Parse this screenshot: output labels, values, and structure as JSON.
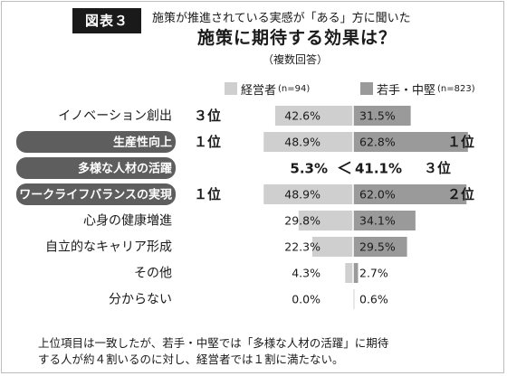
{
  "header": {
    "figure_label": "図表３",
    "subtitle": "施策が推進されている実感が「ある」方に聞いた",
    "title": "施策に期待する効果は？",
    "note": "（複数回答）"
  },
  "colors": {
    "executives": "#cfcfcf",
    "young_mid": "#9a9a9a",
    "highlight_pill": "#5e5e5e",
    "accent_line": "#1a1a1a"
  },
  "chart_data": {
    "type": "bar",
    "orientation": "horizontal-diverging",
    "xlim": [
      0,
      70
    ],
    "categories": [
      "イノベーション創出",
      "生産性向上",
      "多様な人材の活躍",
      "ワークライフバランスの実現",
      "心身の健康増進",
      "自立的なキャリア形成",
      "その他",
      "分からない"
    ],
    "highlighted": [
      false,
      true,
      true,
      true,
      false,
      false,
      false,
      false
    ],
    "series": [
      {
        "name": "経営者",
        "n_label": "(n=94)",
        "side": "left",
        "values": [
          42.6,
          48.9,
          5.3,
          48.9,
          29.8,
          22.3,
          4.3,
          0.0
        ],
        "value_labels": [
          "42.6%",
          "48.9%",
          "5.3%",
          "48.9%",
          "29.8%",
          "22.3%",
          "4.3%",
          "0.0%"
        ],
        "rank_labels": [
          "３位",
          "１位",
          "",
          "１位",
          "",
          "",
          "",
          ""
        ]
      },
      {
        "name": "若手・中堅",
        "n_label": "(n=823)",
        "side": "right",
        "values": [
          31.5,
          62.8,
          41.1,
          62.0,
          34.1,
          29.5,
          2.7,
          0.6
        ],
        "value_labels": [
          "31.5%",
          "62.8%",
          "41.1%",
          "62.0%",
          "34.1%",
          "29.5%",
          "2.7%",
          "0.6%"
        ],
        "rank_labels": [
          "",
          "１位",
          "３位",
          "２位",
          "",
          "",
          "",
          ""
        ]
      }
    ],
    "comparison_symbol": "＜"
  },
  "footnote": {
    "line1": "上位項目は一致したが、若手・中堅では「多様な人材の活躍」に期待",
    "line2": "する人が約４割いるのに対し、経営者では１割に満たない。"
  }
}
